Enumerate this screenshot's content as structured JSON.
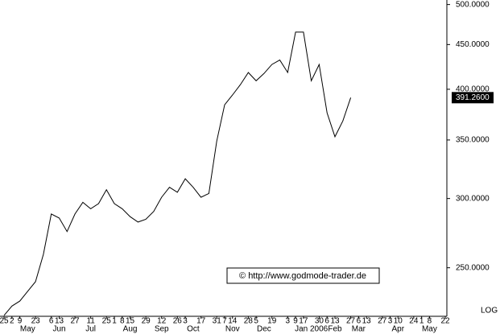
{
  "chart_data": {
    "type": "line",
    "log_scale": true,
    "color": "#000000",
    "categories": [
      "25",
      "2",
      "9",
      null,
      "23",
      null,
      "6",
      "13",
      null,
      "27",
      null,
      "11",
      null,
      "25",
      "1",
      "8",
      "15",
      null,
      "29",
      null,
      "12",
      null,
      "26",
      "3",
      null,
      "17",
      null,
      "31",
      "7",
      "14",
      null,
      "28",
      "5",
      null,
      "19",
      null,
      "3",
      "9",
      "17",
      null,
      "30",
      "6",
      "13",
      null,
      "27",
      "6",
      "13",
      null,
      "27",
      "3",
      "10",
      null,
      "24",
      "1",
      "8",
      null,
      "22"
    ],
    "month_labels": [
      null,
      null,
      null,
      "May",
      null,
      null,
      null,
      "Jun",
      null,
      null,
      null,
      "Jul",
      null,
      null,
      null,
      null,
      "Aug",
      null,
      null,
      null,
      "Sep",
      null,
      null,
      null,
      "Oct",
      null,
      null,
      null,
      null,
      "Nov",
      null,
      null,
      null,
      "Dec",
      null,
      null,
      null,
      null,
      null,
      "Jan 2006",
      null,
      null,
      "Feb",
      null,
      null,
      "Mar",
      null,
      null,
      null,
      null,
      "Apr",
      null,
      null,
      null,
      "May",
      null,
      null
    ],
    "values": [
      220.5,
      226,
      229,
      235,
      241,
      259,
      288,
      285,
      275,
      288,
      297,
      292,
      296,
      307,
      296,
      292,
      286,
      282,
      284,
      290,
      301,
      309,
      305,
      316,
      309,
      301,
      304,
      349,
      384,
      394,
      405,
      418,
      409,
      417,
      427,
      432,
      418,
      465,
      465,
      409,
      427,
      376,
      353,
      368,
      391.26,
      null,
      null,
      null,
      null,
      null,
      null,
      null,
      null,
      null,
      null,
      null,
      null
    ],
    "ylim": [
      220,
      506
    ],
    "yticks": [
      {
        "value": 250,
        "label": "250.0000"
      },
      {
        "value": 300,
        "label": "300.0000"
      },
      {
        "value": 350,
        "label": "350.0000"
      },
      {
        "value": 400,
        "label": "400.0000"
      },
      {
        "value": 450,
        "label": "450.0000"
      },
      {
        "value": 500,
        "label": "500.0000"
      }
    ],
    "last_price": {
      "value": 391.26,
      "label": "391.2600"
    },
    "scale_label": "LOG",
    "watermark": "© http://www.godmode-trader.de"
  }
}
